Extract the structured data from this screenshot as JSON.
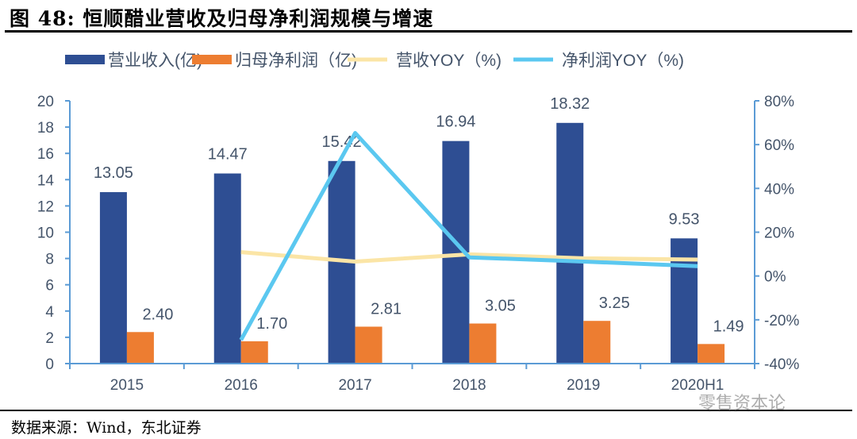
{
  "title": "图  48: 恒顺醋业营收及归母净利润规模与增速",
  "source": "数据来源：Wind，东北证券",
  "watermark": "零售资本论",
  "chart_data": {
    "type": "bar+line",
    "categories": [
      "2015",
      "2016",
      "2017",
      "2018",
      "2019",
      "2020H1"
    ],
    "series": [
      {
        "name": "营业收入(亿)",
        "type": "bar",
        "axis": "left",
        "color": "#2e4e93",
        "values": [
          13.05,
          14.47,
          15.42,
          16.94,
          18.32,
          9.53
        ],
        "labels": [
          "13.05",
          "14.47",
          "15.42",
          "16.94",
          "18.32",
          "9.53"
        ]
      },
      {
        "name": "归母净利润（亿)",
        "type": "bar",
        "axis": "left",
        "color": "#ed7d31",
        "values": [
          2.4,
          1.7,
          2.81,
          3.05,
          3.25,
          1.49
        ],
        "labels": [
          "2.40",
          "1.70",
          "2.81",
          "3.05",
          "3.25",
          "1.49"
        ]
      },
      {
        "name": "营收YOY（%)",
        "type": "line",
        "axis": "right",
        "color": "#fbe5a6",
        "values": [
          null,
          10.9,
          6.6,
          9.9,
          8.1,
          7.5
        ]
      },
      {
        "name": "净利润YOY（%)",
        "type": "line",
        "axis": "right",
        "color": "#5bc8f0",
        "values": [
          null,
          -29.2,
          65.3,
          8.5,
          6.6,
          4.5
        ]
      }
    ],
    "left_axis": {
      "range": [
        0,
        20
      ],
      "ticks": [
        "0",
        "2",
        "4",
        "6",
        "8",
        "10",
        "12",
        "14",
        "16",
        "18",
        "20"
      ]
    },
    "right_axis": {
      "range": [
        -40,
        80
      ],
      "ticks": [
        "-40%",
        "-20%",
        "0%",
        "20%",
        "40%",
        "60%",
        "80%"
      ]
    },
    "legend_position": "top",
    "grid": false,
    "text_color": "#44546a",
    "axis_color": "#5b9bd5"
  }
}
